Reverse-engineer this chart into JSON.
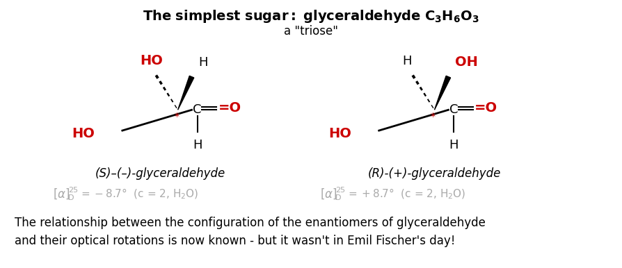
{
  "bg_color": "#ffffff",
  "red": "#cc0000",
  "black": "#000000",
  "gray": "#aaaaaa",
  "figsize": [
    8.94,
    3.86
  ],
  "dpi": 100,
  "title": "The simplest sugar: glyceraldehyde C",
  "title_formula": [
    "3",
    "H",
    "6",
    "O",
    "3"
  ],
  "subtitle": "a \"triose\"",
  "left_name": "(S)-(\\u2013)-glyceraldehyde",
  "right_name": "(R)-(+)-glyceraldehyde",
  "left_optical": "[\\u03b1]",
  "left_rot": "= \\u22128.7\\u00b0  (c = 2, H\\u2082O)",
  "right_rot": "= +8.7\\u00b0  (c = 2, H\\u2082O)",
  "bottom1": "The relationship between the configuration of the enantiomers of glyceraldehyde",
  "bottom2": "and their optical rotations is now known - but it wasn't in Emil Fischer's day!"
}
